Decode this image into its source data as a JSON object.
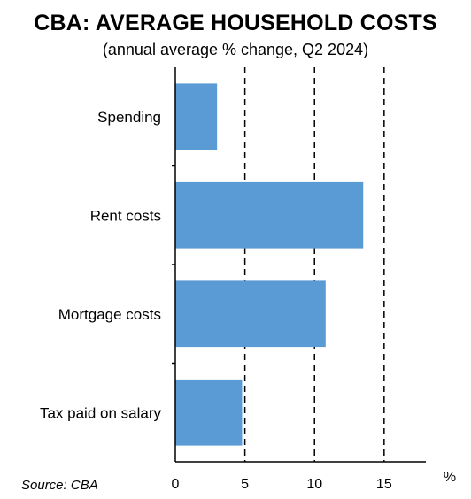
{
  "chart_data": {
    "type": "bar",
    "orientation": "horizontal",
    "title": "CBA: AVERAGE HOUSEHOLD COSTS",
    "subtitle": "(annual average % change, Q2 2024)",
    "categories": [
      "Spending",
      "Rent costs",
      "Mortgage costs",
      "Tax paid on salary"
    ],
    "values": [
      3.0,
      13.5,
      10.8,
      4.8
    ],
    "xlim": [
      0,
      18
    ],
    "xticks": [
      0,
      5,
      10,
      15
    ],
    "xunit": "%",
    "grid": "vertical dashed at 5, 10, 15",
    "bar_color": "#5b9bd5",
    "source": "Source: CBA"
  }
}
